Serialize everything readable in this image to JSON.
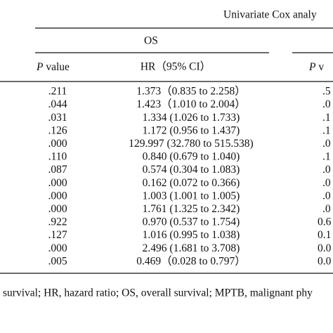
{
  "header": {
    "group_title": "Univariate Cox analy",
    "os_title": "OS",
    "col_p_italic": "P",
    "col_p_rest": "value",
    "col_hr": "HR（95% CI）",
    "col_p2_italic": "P",
    "col_p2_rest": "v"
  },
  "table": {
    "rows": [
      [
        ".211",
        "1.373（0.835 to 2.258）",
        ".5"
      ],
      [
        ".044",
        "1.423（1.010 to 2.004）",
        ".0"
      ],
      [
        ".031",
        "1.334 (1.026 to 1.733)",
        ".1"
      ],
      [
        ".126",
        "1.172 (0.956 to 1.437)",
        ".1"
      ],
      [
        ".000",
        "129.997 (32.780 to 515.538)",
        ".0"
      ],
      [
        ".110",
        "0.840 (0.679 to 1.040)",
        ".1"
      ],
      [
        ".087",
        "0.574 (0.304 to 1.083)",
        ".0"
      ],
      [
        ".000",
        "0.162 (0.072 to 0.366)",
        ".0"
      ],
      [
        ".000",
        "1.003 (1.001 to 1.005)",
        ".0"
      ],
      [
        ".000",
        "1.761 (1.325 to 2.342)",
        ".0"
      ],
      [
        ".922",
        "0.970 (0.537 to 1.754)",
        "0.6"
      ],
      [
        ".127",
        "1.016 (0.995 to 1.038)",
        "0.1"
      ],
      [
        ".000",
        "2.496 (1.681 to 3.708)",
        "0.0"
      ],
      [
        ".005",
        "0.469（0.028 to 0.797）",
        "0.0"
      ]
    ]
  },
  "footer": {
    "note": "survival; HR, hazard ratio; OS, overall survival; MPTB, malignant phy"
  }
}
